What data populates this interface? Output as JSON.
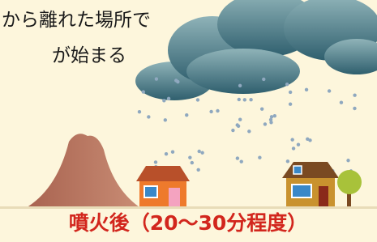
{
  "texts": {
    "line1": "から離れた場所で",
    "line2": "が始まる",
    "caption": "噴火後（20〜30分程度）"
  }
}
